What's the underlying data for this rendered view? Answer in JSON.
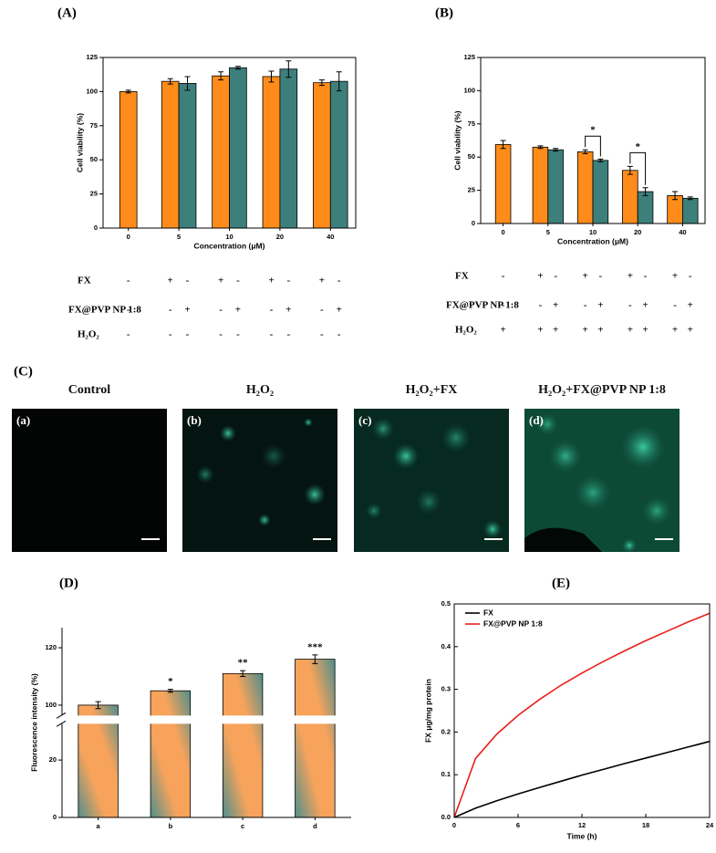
{
  "chart_data": [
    {
      "type": "bar",
      "panel": "(A)",
      "xlabel": "Concentration (μM)",
      "ylabel": "Cell viability (%)",
      "categories": [
        "0",
        "5",
        "10",
        "20",
        "40"
      ],
      "series": [
        {
          "color": "#ff8c1a",
          "values": [
            100,
            107.5,
            111.5,
            111,
            106.5
          ],
          "errors": [
            1,
            2,
            3,
            4,
            2
          ]
        },
        {
          "color": "#3d7f7a",
          "values": [
            null,
            106,
            117.5,
            116.5,
            107.5
          ],
          "errors": [
            null,
            5,
            1,
            6,
            7
          ]
        }
      ],
      "ylim": [
        0,
        125
      ],
      "yticks": [
        0,
        25,
        50,
        75,
        100,
        125
      ],
      "treatments": [
        {
          "label": "FX",
          "signs": [
            "-",
            "+",
            "-",
            "+",
            "-",
            "+",
            "-",
            "+",
            "-"
          ]
        },
        {
          "label": "FX@PVP NP 1:8",
          "signs": [
            "-",
            "-",
            "+",
            "-",
            "+",
            "-",
            "+",
            "-",
            "+"
          ]
        },
        {
          "label": "H₂O₂",
          "signs": [
            "-",
            "-",
            "-",
            "-",
            "-",
            "-",
            "-",
            "-",
            "-"
          ]
        }
      ]
    },
    {
      "type": "bar",
      "panel": "(B)",
      "xlabel": "Concentration (μM)",
      "ylabel": "Cell viability (%)",
      "categories": [
        "0",
        "5",
        "10",
        "20",
        "40"
      ],
      "series": [
        {
          "color": "#ff8c1a",
          "values": [
            59.5,
            57.5,
            54,
            40,
            21
          ],
          "errors": [
            3,
            1,
            1.5,
            3,
            3
          ]
        },
        {
          "color": "#3d7f7a",
          "values": [
            null,
            55.5,
            47.5,
            24,
            19
          ],
          "errors": [
            null,
            1,
            1,
            3,
            1
          ]
        }
      ],
      "ylim": [
        0,
        125
      ],
      "yticks": [
        0,
        25,
        50,
        75,
        100,
        125
      ],
      "significance_labels": [
        null,
        null,
        "*",
        "*",
        null
      ],
      "treatments": [
        {
          "label": "FX",
          "signs": [
            "-",
            "+",
            "-",
            "+",
            "-",
            "+",
            "-",
            "+",
            "-"
          ]
        },
        {
          "label": "FX@PVP NP 1:8",
          "signs": [
            "-",
            "-",
            "+",
            "-",
            "+",
            "-",
            "+",
            "-",
            "+"
          ]
        },
        {
          "label": "H₂O₂",
          "signs": [
            "+",
            "+",
            "+",
            "+",
            "+",
            "+",
            "+",
            "+",
            "+"
          ]
        }
      ]
    },
    {
      "type": "broken-bar",
      "panel": "(D)",
      "ylabel": "Fluorescence intensity (%)",
      "categories": [
        "a",
        "b",
        "c",
        "d"
      ],
      "values": [
        100,
        105,
        111,
        116
      ],
      "errors": [
        1.2,
        0.5,
        1,
        1.5
      ],
      "annotations": [
        null,
        "*",
        "**",
        "***"
      ],
      "colors": [
        "#f7a35c",
        "#4f8f8c"
      ],
      "ylim": [
        0,
        127
      ],
      "ybreak": [
        32,
        97
      ],
      "yticks": [
        0,
        20,
        100,
        120
      ]
    },
    {
      "type": "line",
      "panel": "(E)",
      "xlabel": "Time (h)",
      "ylabel": "FX μg/mg protein",
      "x": [
        0,
        2,
        4,
        6,
        8,
        10,
        12,
        14,
        16,
        18,
        20,
        22,
        24
      ],
      "series": [
        {
          "name": "FX",
          "color": "#000000",
          "values": [
            0,
            0.0216,
            0.039,
            0.055,
            0.07,
            0.0845,
            0.099,
            0.1125,
            0.126,
            0.139,
            0.152,
            0.165,
            0.178
          ]
        },
        {
          "name": "FX@PVP NP 1:8",
          "color": "#e8201c",
          "values": [
            0,
            0.138,
            0.195,
            0.239,
            0.276,
            0.309,
            0.338,
            0.365,
            0.39,
            0.414,
            0.436,
            0.458,
            0.478
          ]
        }
      ],
      "xlim": [
        0,
        24
      ],
      "xticks": [
        0,
        6,
        12,
        18,
        24
      ],
      "ylim": [
        0,
        0.5
      ],
      "yticks": [
        {
          "value": 0,
          "label": "0.0"
        },
        0.1,
        0.2,
        0.3,
        0.4,
        0.5
      ],
      "legend": "upper left"
    }
  ],
  "images": {
    "panel": "(C)",
    "items": [
      {
        "title": "Control",
        "label": "(a)"
      },
      {
        "title": "H₂O₂",
        "label": "(b)"
      },
      {
        "title": "H₂O₂+FX",
        "label": "(c)"
      },
      {
        "title": "H₂O₂+FX@PVP NP 1:8",
        "label": "(d)"
      }
    ]
  }
}
